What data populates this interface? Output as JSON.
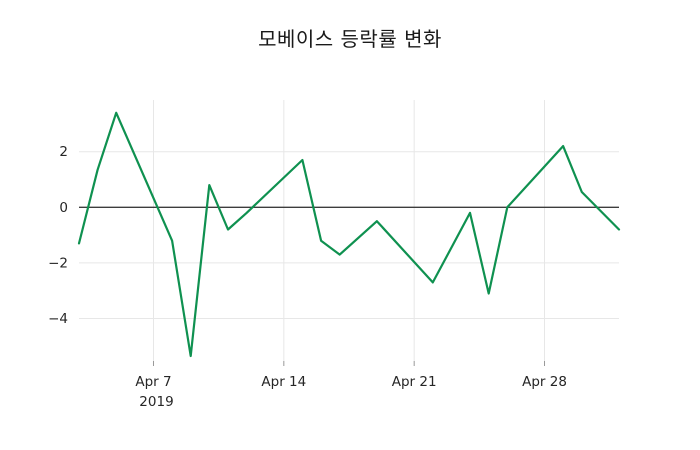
{
  "title": "모베이스 등락률 변화",
  "colors": {
    "background": "#ffffff",
    "line": "#0f9150",
    "grid": "#e7e7e7",
    "zero_line": "#3d3d3d",
    "tick_mark": "#999999",
    "tick_label": "#262626",
    "title": "#1a1a1a"
  },
  "x_axis": {
    "ticks": [
      {
        "label": "Apr 7",
        "day": 4
      },
      {
        "label": "Apr 14",
        "day": 11
      },
      {
        "label": "Apr 21",
        "day": 18
      },
      {
        "label": "Apr 28",
        "day": 25
      }
    ],
    "year_label": "2019",
    "year_under_tick_index": 0
  },
  "y_axis": {
    "ticks": [
      {
        "label": "2",
        "value": 2
      },
      {
        "label": "0",
        "value": 0
      },
      {
        "label": "−2",
        "value": -2
      },
      {
        "label": "−4",
        "value": -4
      }
    ]
  },
  "chart_data": {
    "type": "line",
    "title": "모베이스 등락률 변화",
    "xlabel": "",
    "ylabel": "",
    "legend": false,
    "grid": true,
    "zero_line": true,
    "line_color": "#0f9150",
    "x_tick_labels": [
      "Apr 7",
      "Apr 14",
      "Apr 21",
      "Apr 28"
    ],
    "y_tick_labels": [
      "2",
      "0",
      "−2",
      "−4"
    ],
    "ylim": [
      -5.53,
      3.86
    ],
    "x_range_days": [
      0,
      29
    ],
    "points": [
      {
        "date": "2019-04-03",
        "day": 0,
        "value": -1.3
      },
      {
        "date": "2019-04-04",
        "day": 1,
        "value": 1.35
      },
      {
        "date": "2019-04-05",
        "day": 2,
        "value": 3.4
      },
      {
        "date": "2019-04-08",
        "day": 5,
        "value": -1.2
      },
      {
        "date": "2019-04-09",
        "day": 6,
        "value": -5.35
      },
      {
        "date": "2019-04-10",
        "day": 7,
        "value": 0.8
      },
      {
        "date": "2019-04-11",
        "day": 8,
        "value": -0.8
      },
      {
        "date": "2019-04-12",
        "day": 9,
        "value": -0.2
      },
      {
        "date": "2019-04-15",
        "day": 12,
        "value": 1.7
      },
      {
        "date": "2019-04-16",
        "day": 13,
        "value": -1.2
      },
      {
        "date": "2019-04-17",
        "day": 14,
        "value": -1.7
      },
      {
        "date": "2019-04-19",
        "day": 16,
        "value": -0.5
      },
      {
        "date": "2019-04-22",
        "day": 19,
        "value": -2.7
      },
      {
        "date": "2019-04-24",
        "day": 21,
        "value": -0.2
      },
      {
        "date": "2019-04-25",
        "day": 22,
        "value": -3.1
      },
      {
        "date": "2019-04-26",
        "day": 23,
        "value": 0.0
      },
      {
        "date": "2019-04-29",
        "day": 26,
        "value": 2.2
      },
      {
        "date": "2019-04-30",
        "day": 27,
        "value": 0.55
      },
      {
        "date": "2019-05-02",
        "day": 29,
        "value": -0.8
      }
    ]
  }
}
